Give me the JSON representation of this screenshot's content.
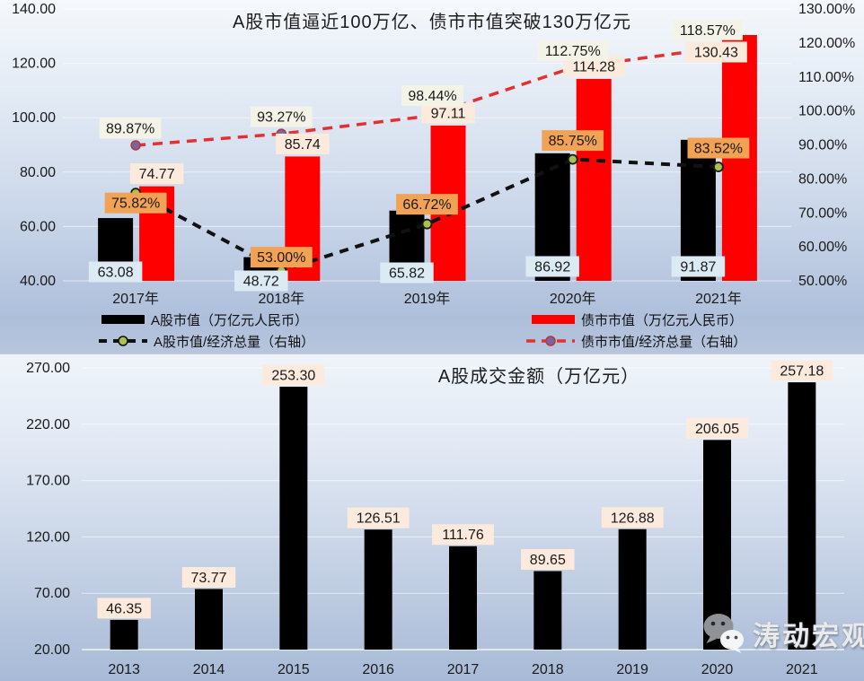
{
  "chart1": {
    "title": "A股市值逼近100万亿、债市市值突破130万亿元",
    "legend": [
      {
        "label": "A股市值（万亿元人民币）",
        "swatch": "black-bar",
        "color": "#000000"
      },
      {
        "label": "债市市值（万亿元人民币）",
        "swatch": "red-bar",
        "color": "#ff0000"
      },
      {
        "label": "A股市值/经济总量（右轴）",
        "swatch": "black-dashed-line",
        "color": "#111111",
        "marker_color": "#a9c24e"
      },
      {
        "label": "债市市值/经济总量（右轴）",
        "swatch": "red-dashed-line",
        "color": "#e33030",
        "marker_color": "#7d62a1"
      }
    ]
  },
  "chart2": {
    "title": "A股成交金额（万亿元）"
  },
  "watermark": {
    "text": "涛动宏观",
    "icon": "wechat-icon"
  },
  "chart_data": [
    {
      "type": "bar+line",
      "title": "A股市值逼近100万亿、债市市值突破130万亿元",
      "categories": [
        "2017年",
        "2018年",
        "2019年",
        "2020年",
        "2021年"
      ],
      "left_axis": {
        "min": 40,
        "max": 140,
        "values": [
          140,
          120,
          100,
          80,
          60,
          40
        ],
        "labels": [
          "140.00",
          "120.00",
          "100.00",
          "80.00",
          "60.00",
          "40.00"
        ]
      },
      "right_axis": {
        "min": 50,
        "max": 130,
        "values": [
          130,
          120,
          110,
          100,
          90,
          80,
          70,
          60,
          50
        ],
        "labels": [
          "130.00%",
          "120.00%",
          "110.00%",
          "100.00%",
          "90.00%",
          "80.00%",
          "70.00%",
          "60.00%",
          "50.00%"
        ]
      },
      "grid": true,
      "legend_position": "bottom",
      "series": [
        {
          "name": "A股市值（万亿元人民币）",
          "type": "bar",
          "axis": "left",
          "color": "#000000",
          "values": [
            63.08,
            48.72,
            65.82,
            86.92,
            91.87
          ],
          "label_bg": "#dceaf3",
          "label_dy": [
            6,
            16,
            7,
            0,
            0
          ],
          "label_dx": [
            0,
            0,
            0,
            0,
            0
          ]
        },
        {
          "name": "债市市值（万亿元人民币）",
          "type": "bar",
          "axis": "left",
          "color": "#ff0000",
          "values": [
            74.77,
            85.74,
            97.11,
            114.28,
            130.43
          ],
          "label_bg": "#fcebdd",
          "label_dy": [
            0,
            0,
            0,
            0,
            33
          ],
          "label_dx": [
            0,
            0,
            0,
            0,
            -26
          ]
        },
        {
          "name": "A股市值/经济总量（右轴）",
          "type": "line",
          "axis": "right",
          "color": "#111111",
          "marker_color": "#a9c24e",
          "values": [
            75.82,
            53.0,
            66.72,
            85.75,
            83.52
          ],
          "label_bg": "#f2a254",
          "label_dy": [
            11,
            -15,
            -22,
            -21,
            -21
          ],
          "label_dx": [
            0,
            0,
            0,
            0,
            0
          ]
        },
        {
          "name": "债市市值/经济总量（右轴）",
          "type": "line",
          "axis": "right",
          "color": "#e33030",
          "marker_color": "#7d62a1",
          "values": [
            89.87,
            93.27,
            98.44,
            112.75,
            118.57
          ],
          "label_bg": "#f3f4e7",
          "label_dy": [
            -19,
            -19,
            -23,
            -19,
            -20
          ],
          "label_dx": [
            -6,
            0,
            6,
            0,
            -12
          ]
        }
      ]
    },
    {
      "type": "bar",
      "title": "A股成交金额（万亿元）",
      "categories": [
        "2013",
        "2014",
        "2015",
        "2016",
        "2017",
        "2018",
        "2019",
        "2020",
        "2021"
      ],
      "values": [
        46.35,
        73.77,
        253.3,
        126.51,
        111.76,
        89.65,
        126.88,
        206.05,
        257.18
      ],
      "bar_color": "#000000",
      "label_bg": "#fcebdd",
      "y_axis": {
        "min": 20,
        "max": 270,
        "values": [
          270,
          220,
          170,
          120,
          70,
          20
        ],
        "labels": [
          "270.00",
          "220.00",
          "170.00",
          "120.00",
          "70.00",
          "20.00"
        ]
      },
      "grid": true
    }
  ]
}
